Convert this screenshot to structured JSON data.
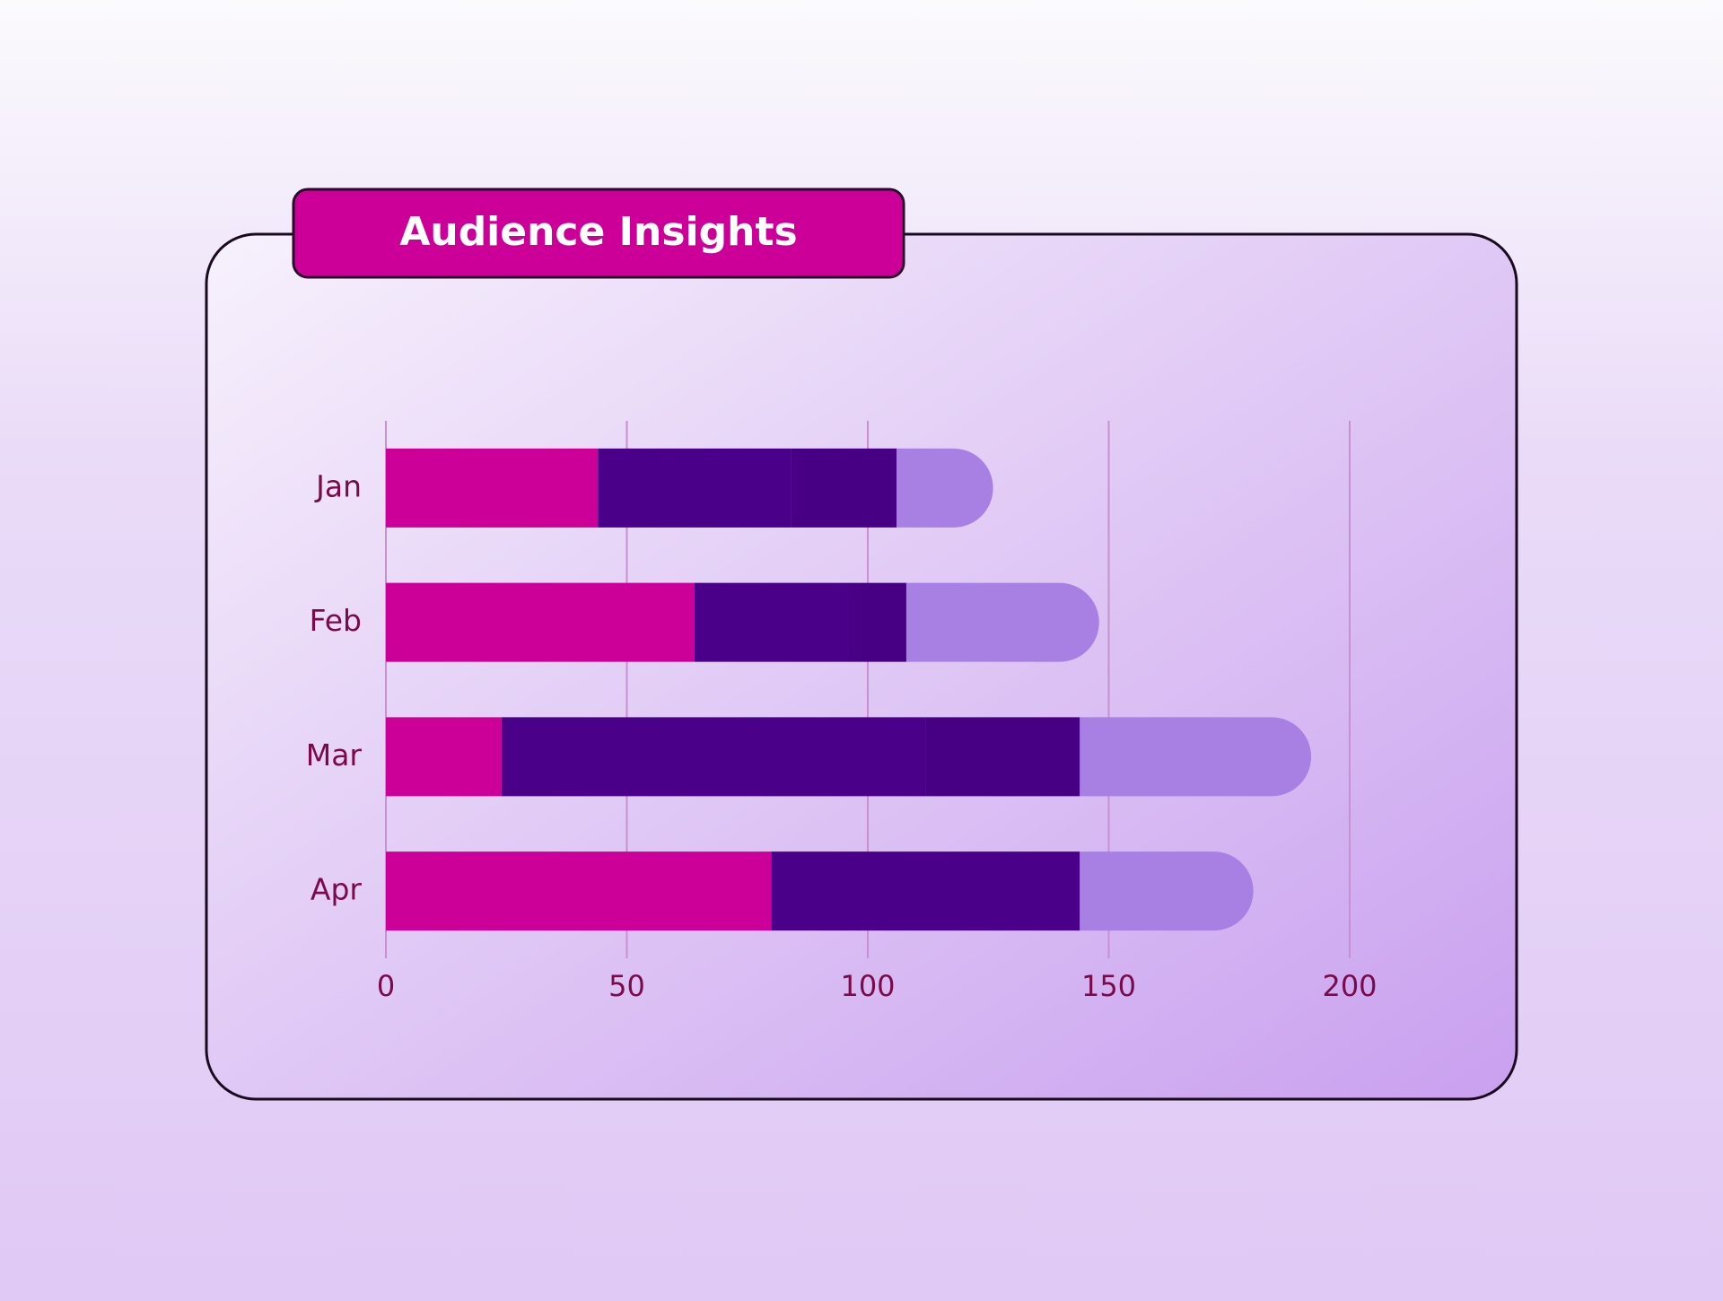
{
  "chart_data": {
    "type": "stacked_bar_horizontal",
    "title": "Audience Insights",
    "categories": [
      "Jan",
      "Feb",
      "Mar",
      "Apr"
    ],
    "series": [
      {
        "color": "#cc0099",
        "values": [
          44,
          64,
          24,
          80
        ]
      },
      {
        "color": "#4a0088",
        "values": [
          40,
          32,
          88,
          64
        ]
      },
      {
        "color": "#470083",
        "values": [
          22,
          12,
          32,
          0
        ]
      },
      {
        "color": "#a87fe2",
        "values": [
          20,
          40,
          48,
          36
        ]
      }
    ],
    "xlim": [
      0,
      200
    ],
    "xticks": [
      0,
      50,
      100,
      150,
      200
    ],
    "grid": true
  }
}
